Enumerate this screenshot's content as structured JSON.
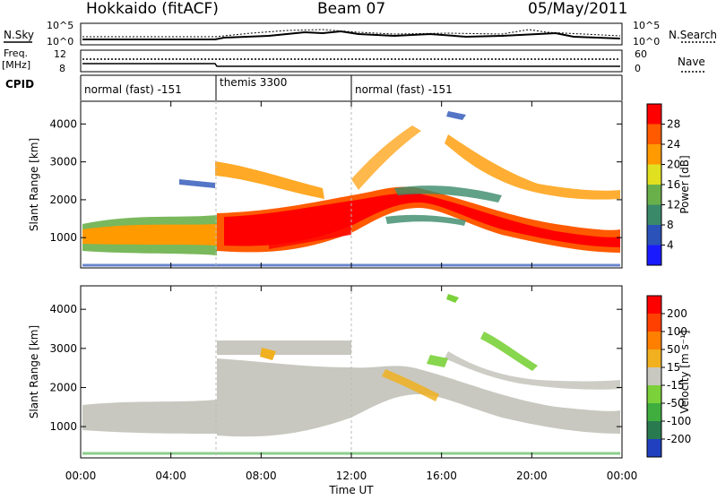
{
  "header": {
    "radar": "Hokkaido (fitACF)",
    "beam": "Beam 07",
    "date": "05/May/2011"
  },
  "status_panel": {
    "nsky_label": "N.Sky",
    "nsky_ticks": [
      "10^5",
      "10^0"
    ],
    "nsearch_label": "N.Search",
    "nsearch_ticks": [
      "10^5",
      "10^0"
    ],
    "freq_label": "Freq.",
    "freq_unit": "[MHz]",
    "freq_ticks": [
      "12",
      "8"
    ],
    "nave_label": "Nave",
    "nave_ticks": [
      "60",
      "0"
    ],
    "cpid_label": "CPID",
    "cpid_segments": [
      {
        "label": "normal (fast) -151",
        "start_hour": 0,
        "end_hour": 6
      },
      {
        "label": "themis 3300",
        "start_hour": 6,
        "end_hour": 12
      },
      {
        "label": "normal (fast) -151",
        "start_hour": 12,
        "end_hour": 24
      }
    ]
  },
  "chart_data": [
    {
      "type": "heatmap",
      "name": "power",
      "ylabel": "Slant Range [km]",
      "yticks": [
        "1000",
        "2000",
        "3000",
        "4000"
      ],
      "ylim": [
        200,
        4600
      ],
      "xlim_hours": [
        0,
        24
      ],
      "colorbar_label": "Power [dB]",
      "colorbar_ticks": [
        "4",
        "8",
        "12",
        "16",
        "20",
        "24",
        "28"
      ],
      "colorbar_colors": [
        "#1a1aff",
        "#2a52b8",
        "#3a8a6a",
        "#6ab04a",
        "#e0e020",
        "#ff9a00",
        "#ff5a00",
        "#ff0000"
      ]
    },
    {
      "type": "heatmap",
      "name": "velocity",
      "ylabel": "Slant Range [km]",
      "yticks": [
        "1000",
        "2000",
        "3000",
        "4000"
      ],
      "ylim": [
        200,
        4600
      ],
      "xlim_hours": [
        0,
        24
      ],
      "colorbar_label": "Velocity [m s⁻¹]",
      "colorbar_ticks": [
        "200",
        "100",
        "50",
        "15",
        "-15",
        "-50",
        "-100",
        "-200"
      ],
      "colorbar_colors": [
        "#2040c0",
        "#2a7a50",
        "#3fae3f",
        "#7ad13a",
        "#c8c8c0",
        "#f0b020",
        "#ff8000",
        "#ff4000",
        "#ff0000"
      ]
    }
  ],
  "xaxis": {
    "ticks": [
      "00:00",
      "04:00",
      "08:00",
      "12:00",
      "16:00",
      "20:00",
      "00:00"
    ],
    "label": "Time UT"
  }
}
